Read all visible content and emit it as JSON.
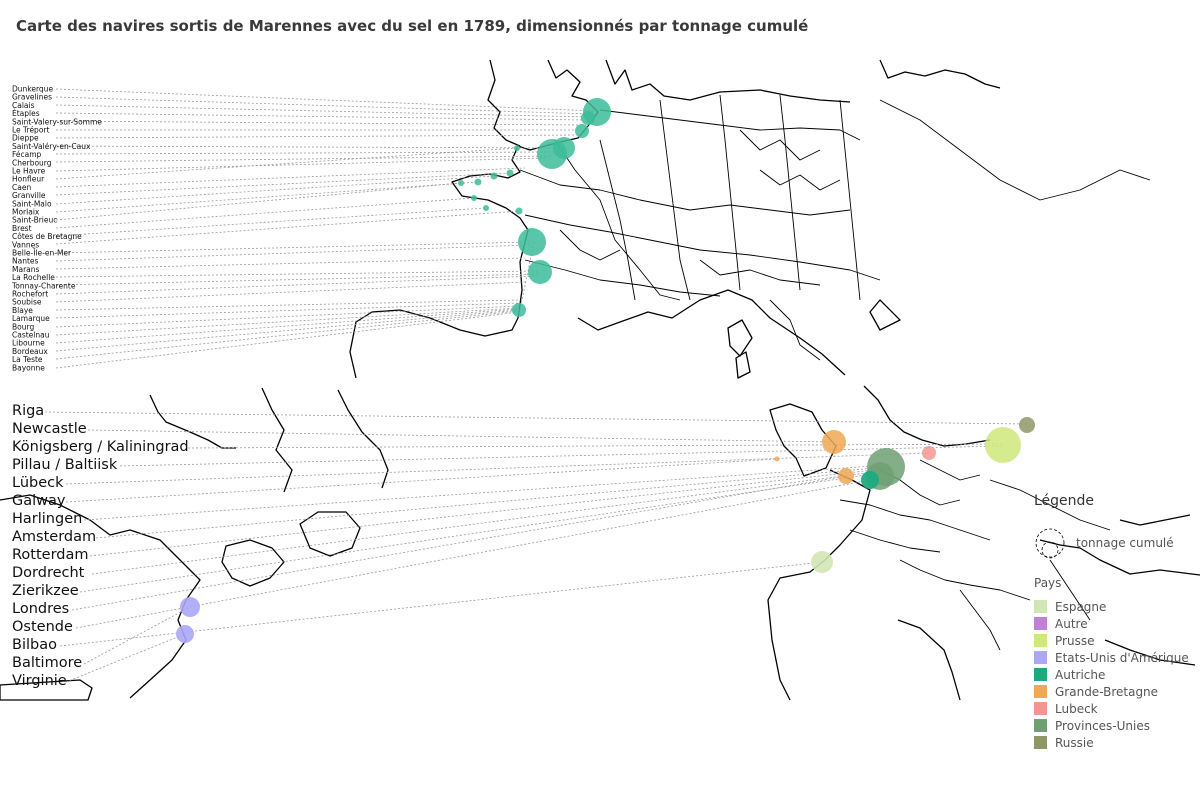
{
  "title": "Carte des navires sortis de Marennes avec du sel en 1789, dimensionnés par tonnage cumulé",
  "french_ports": [
    "Dunkerque",
    "Gravelines",
    "Calais",
    "Étaples",
    "Saint-Valery-sur-Somme",
    "Le Tréport",
    "Dieppe",
    "Saint-Valéry-en-Caux",
    "Fécamp",
    "Cherbourg",
    "Le Havre",
    "Honfleur",
    "Caen",
    "Granville",
    "Saint-Malo",
    "Morlaix",
    "Saint-Brieuc",
    "Brest",
    "Côtes de Bretagne",
    "Vannes",
    "Belle-Île-en-Mer",
    "Nantes",
    "Marans",
    "La Rochelle",
    "Tonnay-Charente",
    "Rochefort",
    "Soubise",
    "Blaye",
    "Lamarque",
    "Bourg",
    "Castelnau",
    "Libourne",
    "Bordeaux",
    "La Teste",
    "Bayonne"
  ],
  "foreign_ports": [
    "Riga",
    "Newcastle",
    "Königsberg / Kaliningrad",
    "Pillau / Baltiisk",
    "Lübeck",
    "Galway",
    "Harlingen",
    "Amsterdam",
    "Rotterdam",
    "Dordrecht",
    "Zierikzee",
    "Londres",
    "Ostende",
    "Bilbao",
    "Baltimore",
    "Virginie"
  ],
  "legend": {
    "title": "Légende",
    "size_label": "tonnage cumulé",
    "country_title": "Pays",
    "countries": [
      {
        "name": "Espagne",
        "color": "#d1e6b5"
      },
      {
        "name": "Autre",
        "color": "#c080d6"
      },
      {
        "name": "Prusse",
        "color": "#cfe87a"
      },
      {
        "name": "Etats-Unis d'Amérique",
        "color": "#aca7f6"
      },
      {
        "name": "Autriche",
        "color": "#1daa80"
      },
      {
        "name": "Grande-Bretagne",
        "color": "#efa854"
      },
      {
        "name": "Lubeck",
        "color": "#f59591"
      },
      {
        "name": "Provinces-Unies",
        "color": "#6fa072"
      },
      {
        "name": "Russie",
        "color": "#8f9766"
      }
    ]
  },
  "colors": {
    "france": "#3cbc9a"
  }
}
